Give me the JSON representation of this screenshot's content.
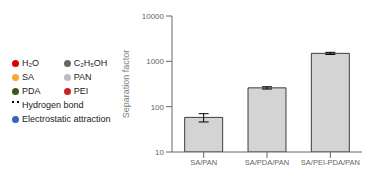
{
  "chart_data": {
    "type": "bar",
    "categories": [
      "SA/PAN",
      "SA/PDA/PAN",
      "SA/PEI-PDA/PAN"
    ],
    "values": [
      58,
      260,
      1500
    ],
    "errors": [
      12,
      15,
      80
    ],
    "color": "#d4d4d4",
    "ylabel": "Separation factor",
    "ylim": [
      10,
      10000
    ],
    "yticks": [
      10,
      100,
      1000,
      10000
    ],
    "log": "y",
    "grid": false,
    "annotations": [
      "H₂O",
      "C₂H₅OH",
      "SA",
      "PAN",
      "PDA",
      "PEI",
      "Hydrogen bond",
      "Electrostatic attraction"
    ]
  }
}
